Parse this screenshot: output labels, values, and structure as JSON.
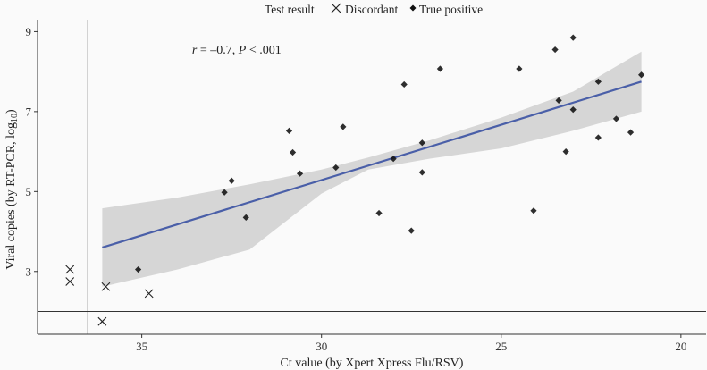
{
  "chart_data": {
    "type": "scatter",
    "xlabel": "Ct value (by Xpert Xpress Flu/RSV)",
    "ylabel_main": "Viral copies (by RT-PCR, log",
    "ylabel_sub": "10",
    "ylabel_close": ")",
    "x_reversed": true,
    "xlim": [
      37.9,
      19.3
    ],
    "ylim": [
      1.43,
      9.3
    ],
    "x_ticks": [
      35,
      30,
      25,
      20
    ],
    "y_ticks": [
      3,
      5,
      7,
      9
    ],
    "grid": false,
    "legend": {
      "position": "top",
      "title": "Test result",
      "entries": [
        {
          "label": "Discordant",
          "marker": "cross"
        },
        {
          "label": "True positive",
          "marker": "diamond"
        }
      ]
    },
    "annotation": {
      "r_prefix": "r",
      "r_value": " = –0.7, ",
      "p_prefix": "P",
      "p_value": " < .001",
      "position": {
        "x": 33.6,
        "y": 8.45
      }
    },
    "reference_lines": {
      "vertical_x": 36.5,
      "horizontal_y": 2.0
    },
    "regression": {
      "x_start": 36.1,
      "y_start": 3.6,
      "x_end": 21.1,
      "y_end": 7.75,
      "color": "#4a5fa8"
    },
    "confidence_band": {
      "color": "#d6d6d6",
      "upper": [
        [
          36.1,
          4.58
        ],
        [
          34,
          4.85
        ],
        [
          32,
          5.18
        ],
        [
          30,
          5.55
        ],
        [
          28.7,
          5.85
        ],
        [
          27,
          6.28
        ],
        [
          25,
          6.85
        ],
        [
          23,
          7.5
        ],
        [
          21.1,
          8.5
        ]
      ],
      "lower": [
        [
          36.1,
          2.62
        ],
        [
          34,
          3.05
        ],
        [
          32,
          3.55
        ],
        [
          30,
          4.95
        ],
        [
          28.7,
          5.55
        ],
        [
          27,
          5.82
        ],
        [
          25,
          6.08
        ],
        [
          23,
          6.52
        ],
        [
          21.1,
          7.0
        ]
      ]
    },
    "series": [
      {
        "name": "Discordant",
        "marker": "cross",
        "points": [
          {
            "x": 37.0,
            "y": 3.05
          },
          {
            "x": 37.0,
            "y": 2.75
          },
          {
            "x": 36.0,
            "y": 2.62
          },
          {
            "x": 34.8,
            "y": 2.45
          },
          {
            "x": 36.1,
            "y": 1.75
          }
        ]
      },
      {
        "name": "True positive",
        "marker": "diamond",
        "points": [
          {
            "x": 35.1,
            "y": 3.05
          },
          {
            "x": 32.7,
            "y": 4.98
          },
          {
            "x": 32.5,
            "y": 5.27
          },
          {
            "x": 32.1,
            "y": 4.35
          },
          {
            "x": 30.9,
            "y": 6.52
          },
          {
            "x": 30.8,
            "y": 5.98
          },
          {
            "x": 30.6,
            "y": 5.45
          },
          {
            "x": 29.6,
            "y": 5.6
          },
          {
            "x": 29.4,
            "y": 6.62
          },
          {
            "x": 28.4,
            "y": 4.46
          },
          {
            "x": 28.0,
            "y": 5.82
          },
          {
            "x": 27.7,
            "y": 7.68
          },
          {
            "x": 27.5,
            "y": 4.02
          },
          {
            "x": 27.2,
            "y": 6.22
          },
          {
            "x": 27.2,
            "y": 5.48
          },
          {
            "x": 26.7,
            "y": 8.07
          },
          {
            "x": 24.5,
            "y": 8.07
          },
          {
            "x": 24.1,
            "y": 4.52
          },
          {
            "x": 23.5,
            "y": 8.55
          },
          {
            "x": 23.4,
            "y": 7.28
          },
          {
            "x": 23.2,
            "y": 6.0
          },
          {
            "x": 23.0,
            "y": 8.85
          },
          {
            "x": 23.0,
            "y": 7.05
          },
          {
            "x": 22.3,
            "y": 7.75
          },
          {
            "x": 22.3,
            "y": 6.35
          },
          {
            "x": 21.8,
            "y": 6.82
          },
          {
            "x": 21.4,
            "y": 6.48
          },
          {
            "x": 21.1,
            "y": 7.92
          }
        ]
      }
    ]
  }
}
